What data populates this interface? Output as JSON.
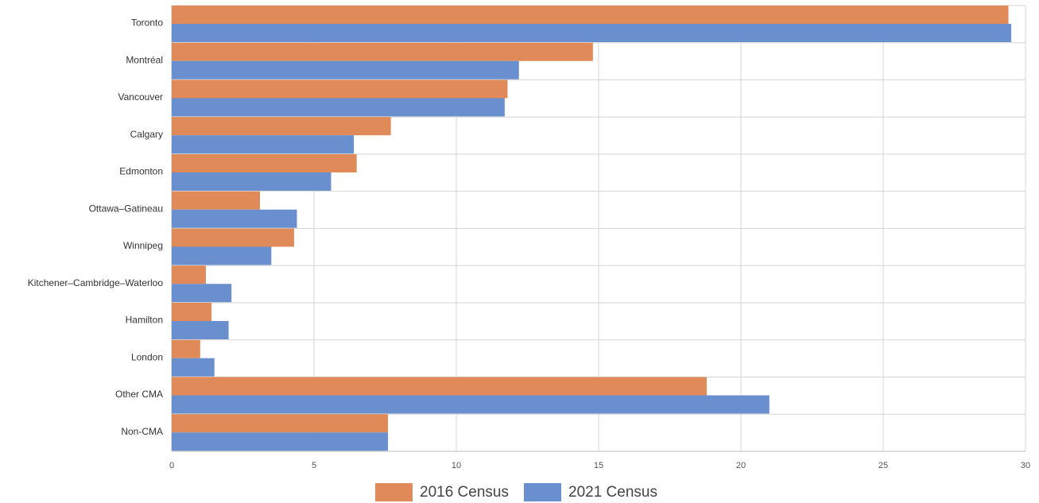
{
  "chart_data": {
    "type": "bar",
    "orientation": "horizontal",
    "categories": [
      "Toronto",
      "Montréal",
      "Vancouver",
      "Calgary",
      "Edmonton",
      "Ottawa–Gatineau",
      "Winnipeg",
      "Kitchener–Cambridge–Waterloo",
      "Hamilton",
      "London",
      "Other CMA",
      "Non-CMA"
    ],
    "series": [
      {
        "name": "2016 Census",
        "color": "#e08a5a",
        "values": [
          29.4,
          14.8,
          11.8,
          7.7,
          6.5,
          3.1,
          4.3,
          1.2,
          1.4,
          1.0,
          18.8,
          7.6
        ]
      },
      {
        "name": "2021 Census",
        "color": "#6a8fcf",
        "values": [
          29.5,
          12.2,
          11.7,
          6.4,
          5.6,
          4.4,
          3.5,
          2.1,
          2.0,
          1.5,
          21.0,
          7.6
        ]
      }
    ],
    "xlim": [
      0,
      30
    ],
    "xticks": [
      0,
      5,
      10,
      15,
      20,
      25,
      30
    ],
    "grid": true,
    "legend": "bottom-center",
    "title": "",
    "xlabel": "",
    "ylabel": ""
  }
}
